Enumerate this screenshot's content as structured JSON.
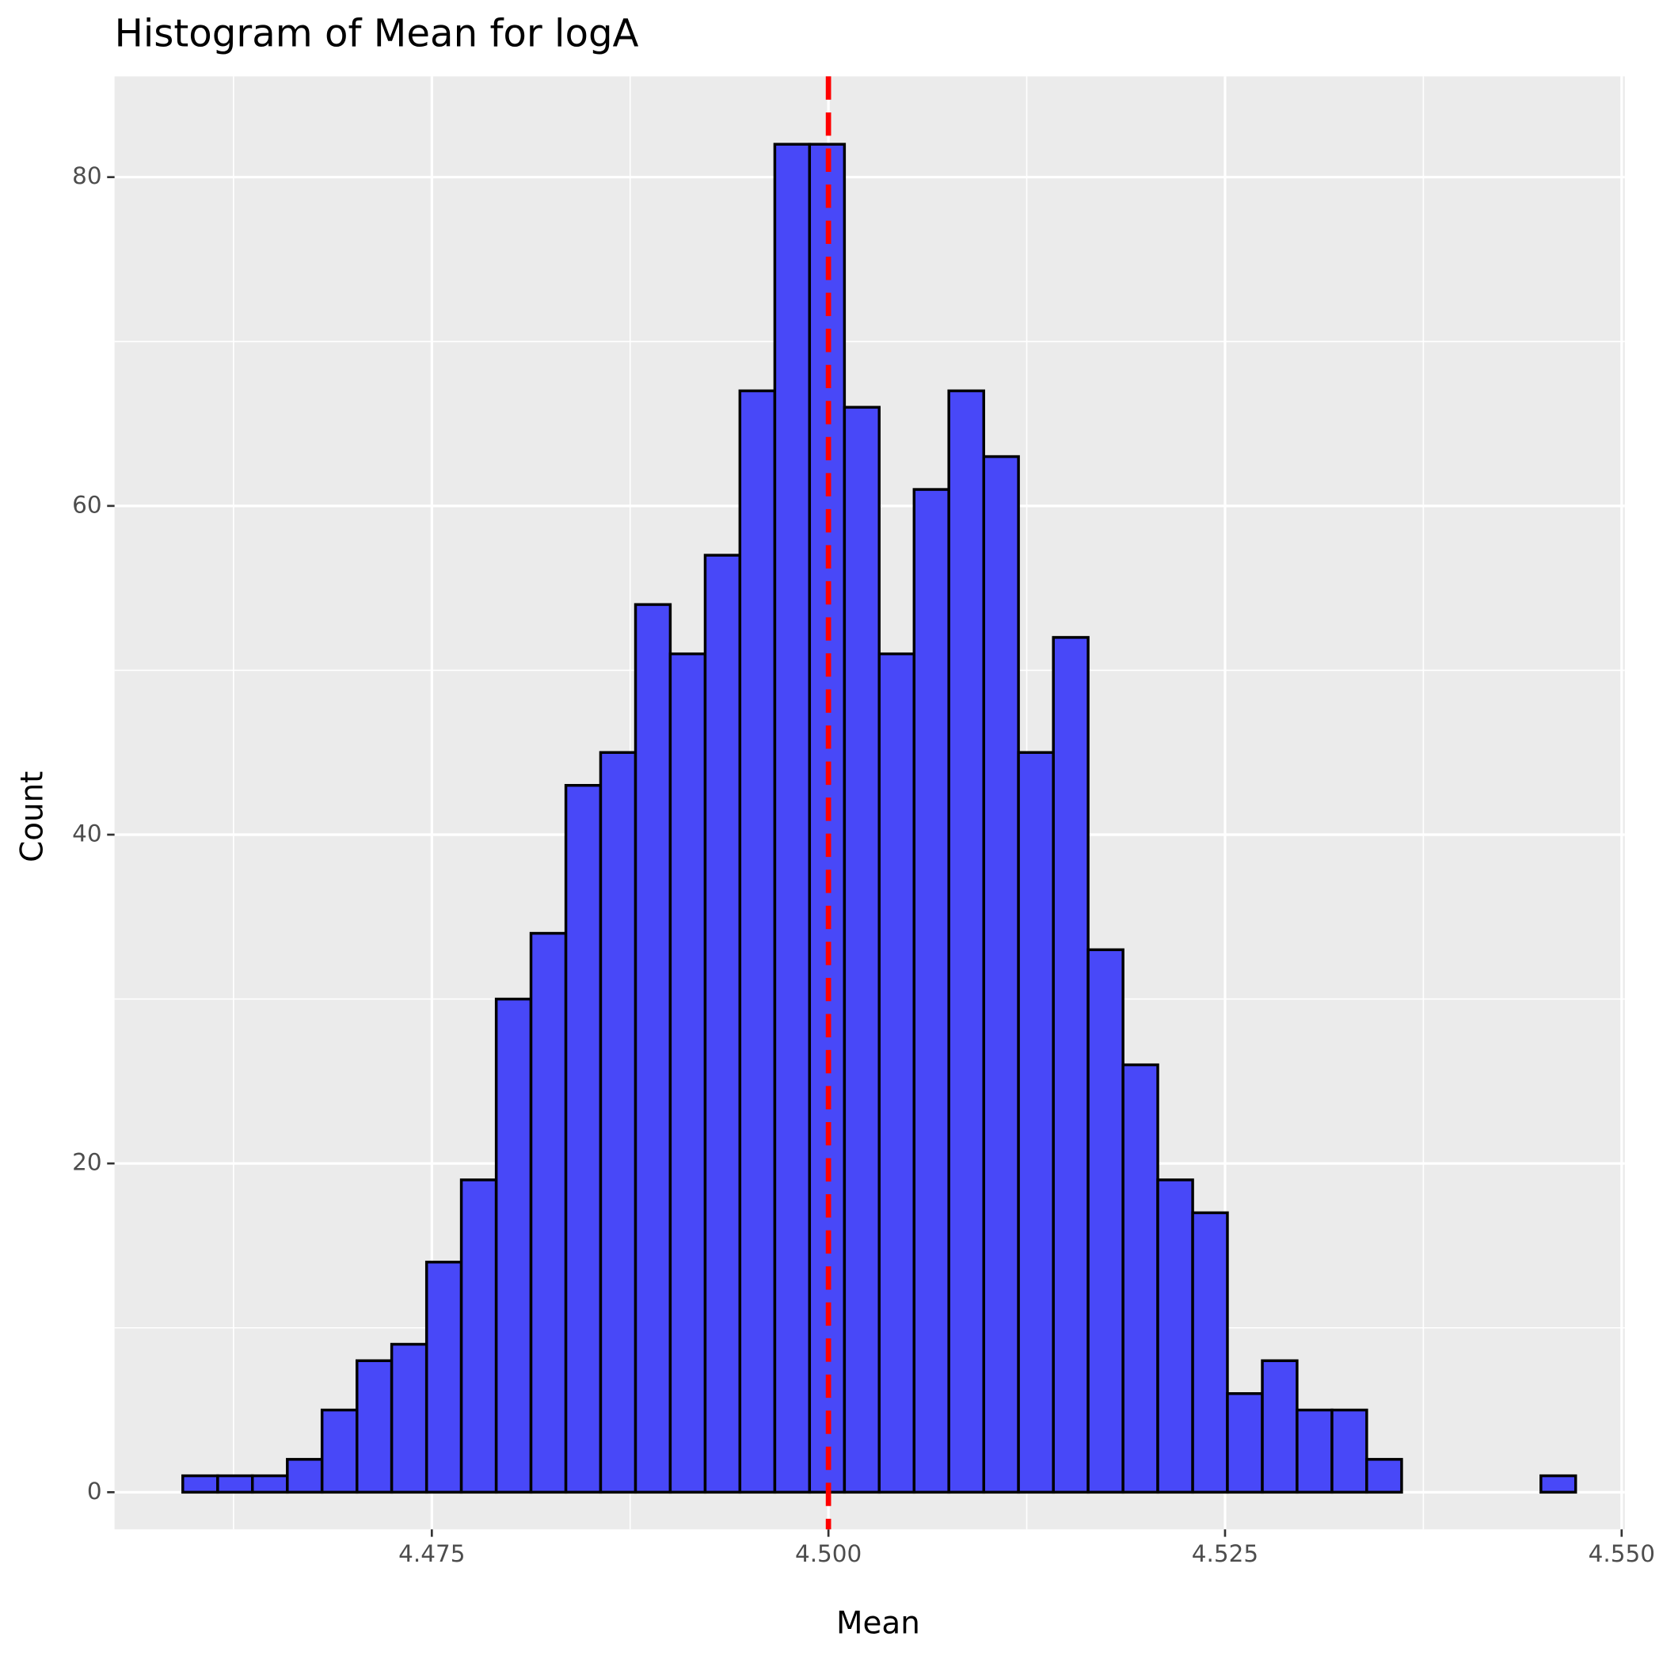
{
  "chart_data": {
    "type": "histogram",
    "title": "Histogram of Mean for logA",
    "x_label": "Mean",
    "y_label": "Count",
    "bins": [
      4.4593,
      4.4615,
      4.46369,
      4.46589,
      4.46808,
      4.47028,
      4.47247,
      4.47467,
      4.47686,
      4.47906,
      4.48125,
      4.48345,
      4.48564,
      4.48784,
      4.49003,
      4.49223,
      4.49442,
      4.49662,
      4.49881,
      4.50101,
      4.5032,
      4.5054,
      4.50759,
      4.50979,
      4.51198,
      4.51418,
      4.51637,
      4.51857,
      4.52076,
      4.52296,
      4.52515,
      4.52735,
      4.52954,
      4.53174,
      4.53393,
      4.53613,
      4.53832,
      4.54052,
      4.54271,
      4.54491,
      4.5471
    ],
    "values": [
      1,
      1,
      1,
      2,
      5,
      8,
      9,
      14,
      19,
      30,
      34,
      43,
      45,
      54,
      51,
      57,
      67,
      82,
      82,
      66,
      51,
      61,
      67,
      63,
      45,
      52,
      33,
      26,
      19,
      17,
      6,
      8,
      5,
      5,
      2,
      0,
      0,
      0,
      0,
      1
    ],
    "color": "#4848f8",
    "edge_color": "#000000",
    "vline": 4.5,
    "vline_color": "#ff0000",
    "xlim": [
      4.455,
      4.5502
    ],
    "xticks": [
      {
        "value": 4.475,
        "label": "4.475"
      },
      {
        "value": 4.5,
        "label": "4.500"
      },
      {
        "value": 4.525,
        "label": "4.525"
      },
      {
        "value": 4.55,
        "label": "4.550"
      }
    ],
    "ylim": [
      -2.26,
      86.13
    ],
    "yticks": [
      0,
      20,
      40,
      60,
      80
    ],
    "grid": true
  }
}
